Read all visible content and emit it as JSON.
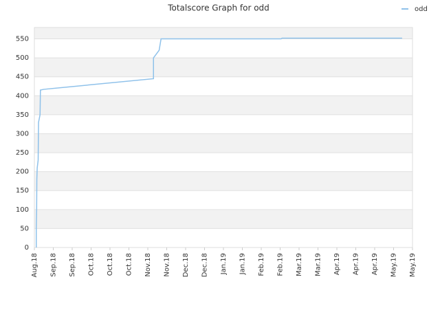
{
  "chart_data": {
    "type": "line",
    "title": "Totalscore Graph for odd",
    "x": [
      0.1,
      0.1,
      0.12,
      0.13,
      0.15,
      0.2,
      0.22,
      0.3,
      0.32,
      0.5,
      6.3,
      6.3,
      6.6,
      6.7,
      13.05,
      13.1,
      19.45
    ],
    "series": [
      {
        "name": "odd",
        "color": "#8ec1ea",
        "values": [
          0,
          50,
          100,
          180,
          210,
          230,
          330,
          350,
          415,
          417,
          445,
          500,
          520,
          550,
          550,
          552,
          552
        ]
      }
    ],
    "xlim": [
      0,
      20
    ],
    "xticks": [
      {
        "value": 0,
        "label": "Aug.18"
      },
      {
        "value": 1,
        "label": "Sep.18"
      },
      {
        "value": 2,
        "label": "Sep.18"
      },
      {
        "value": 3,
        "label": "Oct.18"
      },
      {
        "value": 4,
        "label": "Oct.18"
      },
      {
        "value": 5,
        "label": "Oct.18"
      },
      {
        "value": 6,
        "label": "Nov.18"
      },
      {
        "value": 7,
        "label": "Nov.18"
      },
      {
        "value": 8,
        "label": "Dec.18"
      },
      {
        "value": 9,
        "label": "Dec.18"
      },
      {
        "value": 10,
        "label": "Jan.19"
      },
      {
        "value": 11,
        "label": "Jan.19"
      },
      {
        "value": 12,
        "label": "Feb.19"
      },
      {
        "value": 13,
        "label": "Feb.19"
      },
      {
        "value": 14,
        "label": "Mar.19"
      },
      {
        "value": 15,
        "label": "Mar.19"
      },
      {
        "value": 16,
        "label": "Apr.19"
      },
      {
        "value": 17,
        "label": "Apr.19"
      },
      {
        "value": 18,
        "label": "Apr.19"
      },
      {
        "value": 19,
        "label": "May.19"
      },
      {
        "value": 20,
        "label": "May.19"
      }
    ],
    "ylim": [
      0,
      580
    ],
    "yticks": [
      0,
      50,
      100,
      150,
      200,
      250,
      300,
      350,
      400,
      450,
      500,
      550
    ],
    "grid": true,
    "legend": "top-right"
  }
}
